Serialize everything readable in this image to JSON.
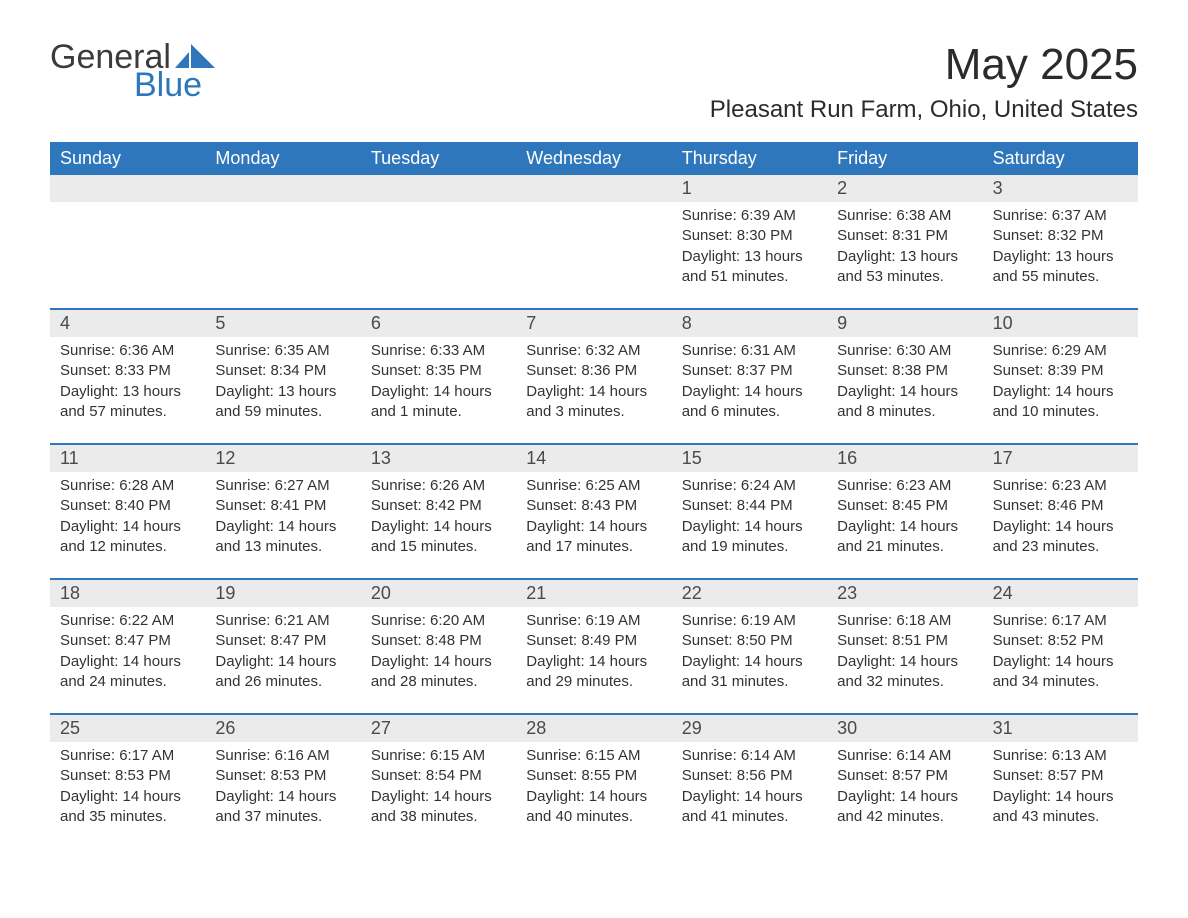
{
  "logo": {
    "word1": "General",
    "word2": "Blue",
    "text_color": "#3b3b3b",
    "accent_color": "#2f77bc"
  },
  "header": {
    "month_title": "May 2025",
    "location": "Pleasant Run Farm, Ohio, United States"
  },
  "styling": {
    "header_bg": "#2f77bc",
    "header_text_color": "#ffffff",
    "daynum_bg": "#ebebeb",
    "body_bg": "#ffffff",
    "text_color": "#333333",
    "week_divider_color": "#2f77bc",
    "weekday_fontsize": 18,
    "daynum_fontsize": 18,
    "body_fontsize": 15,
    "title_fontsize": 44,
    "location_fontsize": 24
  },
  "weekdays": [
    "Sunday",
    "Monday",
    "Tuesday",
    "Wednesday",
    "Thursday",
    "Friday",
    "Saturday"
  ],
  "weeks": [
    {
      "days": [
        {
          "num": "",
          "sunrise": "",
          "sunset": "",
          "daylight1": "",
          "daylight2": ""
        },
        {
          "num": "",
          "sunrise": "",
          "sunset": "",
          "daylight1": "",
          "daylight2": ""
        },
        {
          "num": "",
          "sunrise": "",
          "sunset": "",
          "daylight1": "",
          "daylight2": ""
        },
        {
          "num": "",
          "sunrise": "",
          "sunset": "",
          "daylight1": "",
          "daylight2": ""
        },
        {
          "num": "1",
          "sunrise": "Sunrise: 6:39 AM",
          "sunset": "Sunset: 8:30 PM",
          "daylight1": "Daylight: 13 hours",
          "daylight2": "and 51 minutes."
        },
        {
          "num": "2",
          "sunrise": "Sunrise: 6:38 AM",
          "sunset": "Sunset: 8:31 PM",
          "daylight1": "Daylight: 13 hours",
          "daylight2": "and 53 minutes."
        },
        {
          "num": "3",
          "sunrise": "Sunrise: 6:37 AM",
          "sunset": "Sunset: 8:32 PM",
          "daylight1": "Daylight: 13 hours",
          "daylight2": "and 55 minutes."
        }
      ]
    },
    {
      "days": [
        {
          "num": "4",
          "sunrise": "Sunrise: 6:36 AM",
          "sunset": "Sunset: 8:33 PM",
          "daylight1": "Daylight: 13 hours",
          "daylight2": "and 57 minutes."
        },
        {
          "num": "5",
          "sunrise": "Sunrise: 6:35 AM",
          "sunset": "Sunset: 8:34 PM",
          "daylight1": "Daylight: 13 hours",
          "daylight2": "and 59 minutes."
        },
        {
          "num": "6",
          "sunrise": "Sunrise: 6:33 AM",
          "sunset": "Sunset: 8:35 PM",
          "daylight1": "Daylight: 14 hours",
          "daylight2": "and 1 minute."
        },
        {
          "num": "7",
          "sunrise": "Sunrise: 6:32 AM",
          "sunset": "Sunset: 8:36 PM",
          "daylight1": "Daylight: 14 hours",
          "daylight2": "and 3 minutes."
        },
        {
          "num": "8",
          "sunrise": "Sunrise: 6:31 AM",
          "sunset": "Sunset: 8:37 PM",
          "daylight1": "Daylight: 14 hours",
          "daylight2": "and 6 minutes."
        },
        {
          "num": "9",
          "sunrise": "Sunrise: 6:30 AM",
          "sunset": "Sunset: 8:38 PM",
          "daylight1": "Daylight: 14 hours",
          "daylight2": "and 8 minutes."
        },
        {
          "num": "10",
          "sunrise": "Sunrise: 6:29 AM",
          "sunset": "Sunset: 8:39 PM",
          "daylight1": "Daylight: 14 hours",
          "daylight2": "and 10 minutes."
        }
      ]
    },
    {
      "days": [
        {
          "num": "11",
          "sunrise": "Sunrise: 6:28 AM",
          "sunset": "Sunset: 8:40 PM",
          "daylight1": "Daylight: 14 hours",
          "daylight2": "and 12 minutes."
        },
        {
          "num": "12",
          "sunrise": "Sunrise: 6:27 AM",
          "sunset": "Sunset: 8:41 PM",
          "daylight1": "Daylight: 14 hours",
          "daylight2": "and 13 minutes."
        },
        {
          "num": "13",
          "sunrise": "Sunrise: 6:26 AM",
          "sunset": "Sunset: 8:42 PM",
          "daylight1": "Daylight: 14 hours",
          "daylight2": "and 15 minutes."
        },
        {
          "num": "14",
          "sunrise": "Sunrise: 6:25 AM",
          "sunset": "Sunset: 8:43 PM",
          "daylight1": "Daylight: 14 hours",
          "daylight2": "and 17 minutes."
        },
        {
          "num": "15",
          "sunrise": "Sunrise: 6:24 AM",
          "sunset": "Sunset: 8:44 PM",
          "daylight1": "Daylight: 14 hours",
          "daylight2": "and 19 minutes."
        },
        {
          "num": "16",
          "sunrise": "Sunrise: 6:23 AM",
          "sunset": "Sunset: 8:45 PM",
          "daylight1": "Daylight: 14 hours",
          "daylight2": "and 21 minutes."
        },
        {
          "num": "17",
          "sunrise": "Sunrise: 6:23 AM",
          "sunset": "Sunset: 8:46 PM",
          "daylight1": "Daylight: 14 hours",
          "daylight2": "and 23 minutes."
        }
      ]
    },
    {
      "days": [
        {
          "num": "18",
          "sunrise": "Sunrise: 6:22 AM",
          "sunset": "Sunset: 8:47 PM",
          "daylight1": "Daylight: 14 hours",
          "daylight2": "and 24 minutes."
        },
        {
          "num": "19",
          "sunrise": "Sunrise: 6:21 AM",
          "sunset": "Sunset: 8:47 PM",
          "daylight1": "Daylight: 14 hours",
          "daylight2": "and 26 minutes."
        },
        {
          "num": "20",
          "sunrise": "Sunrise: 6:20 AM",
          "sunset": "Sunset: 8:48 PM",
          "daylight1": "Daylight: 14 hours",
          "daylight2": "and 28 minutes."
        },
        {
          "num": "21",
          "sunrise": "Sunrise: 6:19 AM",
          "sunset": "Sunset: 8:49 PM",
          "daylight1": "Daylight: 14 hours",
          "daylight2": "and 29 minutes."
        },
        {
          "num": "22",
          "sunrise": "Sunrise: 6:19 AM",
          "sunset": "Sunset: 8:50 PM",
          "daylight1": "Daylight: 14 hours",
          "daylight2": "and 31 minutes."
        },
        {
          "num": "23",
          "sunrise": "Sunrise: 6:18 AM",
          "sunset": "Sunset: 8:51 PM",
          "daylight1": "Daylight: 14 hours",
          "daylight2": "and 32 minutes."
        },
        {
          "num": "24",
          "sunrise": "Sunrise: 6:17 AM",
          "sunset": "Sunset: 8:52 PM",
          "daylight1": "Daylight: 14 hours",
          "daylight2": "and 34 minutes."
        }
      ]
    },
    {
      "days": [
        {
          "num": "25",
          "sunrise": "Sunrise: 6:17 AM",
          "sunset": "Sunset: 8:53 PM",
          "daylight1": "Daylight: 14 hours",
          "daylight2": "and 35 minutes."
        },
        {
          "num": "26",
          "sunrise": "Sunrise: 6:16 AM",
          "sunset": "Sunset: 8:53 PM",
          "daylight1": "Daylight: 14 hours",
          "daylight2": "and 37 minutes."
        },
        {
          "num": "27",
          "sunrise": "Sunrise: 6:15 AM",
          "sunset": "Sunset: 8:54 PM",
          "daylight1": "Daylight: 14 hours",
          "daylight2": "and 38 minutes."
        },
        {
          "num": "28",
          "sunrise": "Sunrise: 6:15 AM",
          "sunset": "Sunset: 8:55 PM",
          "daylight1": "Daylight: 14 hours",
          "daylight2": "and 40 minutes."
        },
        {
          "num": "29",
          "sunrise": "Sunrise: 6:14 AM",
          "sunset": "Sunset: 8:56 PM",
          "daylight1": "Daylight: 14 hours",
          "daylight2": "and 41 minutes."
        },
        {
          "num": "30",
          "sunrise": "Sunrise: 6:14 AM",
          "sunset": "Sunset: 8:57 PM",
          "daylight1": "Daylight: 14 hours",
          "daylight2": "and 42 minutes."
        },
        {
          "num": "31",
          "sunrise": "Sunrise: 6:13 AM",
          "sunset": "Sunset: 8:57 PM",
          "daylight1": "Daylight: 14 hours",
          "daylight2": "and 43 minutes."
        }
      ]
    }
  ]
}
